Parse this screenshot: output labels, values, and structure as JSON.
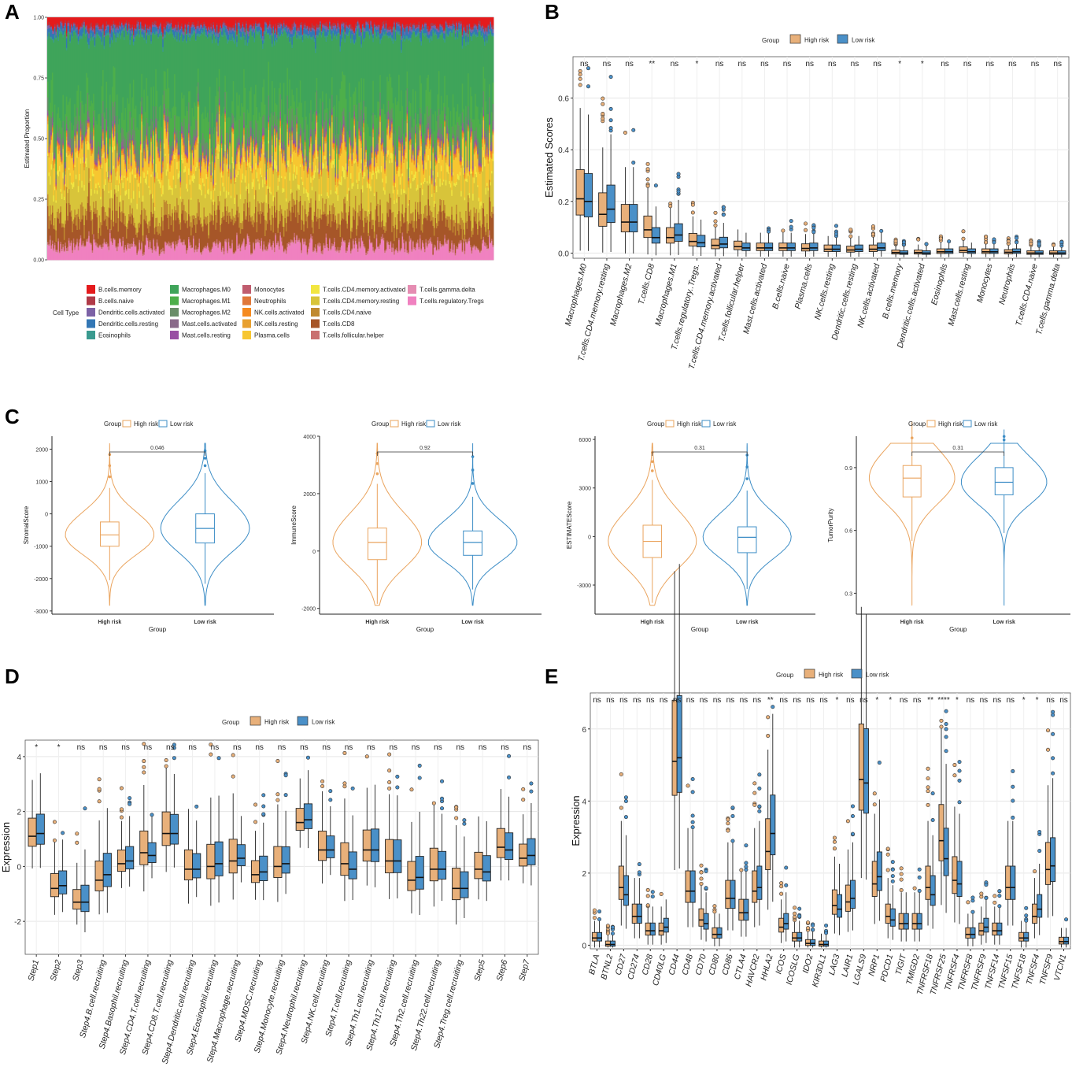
{
  "colors": {
    "high_risk": "#E8B07A",
    "low_risk": "#4A90C8",
    "high_line": "#EAA45E",
    "low_line": "#3C8DC6"
  },
  "panels": {
    "a": "A",
    "b": "B",
    "c": "C",
    "d": "D",
    "e": "E"
  },
  "chart_data": [
    {
      "id": "A",
      "type": "bar",
      "subtype": "stacked-proportion",
      "ylabel": "Estimated Proportion",
      "yticks": [
        "0.00",
        "0.25",
        "0.50",
        "0.75",
        "1.00"
      ],
      "legend_title": "Cell Type",
      "legend": [
        {
          "name": "B.cells.memory",
          "color": "#E41A1C"
        },
        {
          "name": "B.cells.naive",
          "color": "#B03A48"
        },
        {
          "name": "Dendritic.cells.activated",
          "color": "#7C62A6"
        },
        {
          "name": "Dendritic.cells.resting",
          "color": "#3377B5"
        },
        {
          "name": "Eosinophils",
          "color": "#3A9A8F"
        },
        {
          "name": "Macrophages.M0",
          "color": "#3FA45A"
        },
        {
          "name": "Macrophages.M1",
          "color": "#4DAF4A"
        },
        {
          "name": "Macrophages.M2",
          "color": "#6A8E69"
        },
        {
          "name": "Mast.cells.activated",
          "color": "#8A6A8A"
        },
        {
          "name": "Mast.cells.resting",
          "color": "#984EA3"
        },
        {
          "name": "Monocytes",
          "color": "#C05C6E"
        },
        {
          "name": "Neutrophils",
          "color": "#E0783A"
        },
        {
          "name": "NK.cells.activated",
          "color": "#F58A1F"
        },
        {
          "name": "NK.cells.resting",
          "color": "#E8A030"
        },
        {
          "name": "Plasma.cells",
          "color": "#F7C630"
        },
        {
          "name": "T.cells.CD4.memory.activated",
          "color": "#F2E640"
        },
        {
          "name": "T.cells.CD4.memory.resting",
          "color": "#D8C43A"
        },
        {
          "name": "T.cells.CD4.naive",
          "color": "#C08A30"
        },
        {
          "name": "T.cells.CD8",
          "color": "#A65628"
        },
        {
          "name": "T.cells.follicular.helper",
          "color": "#C97070"
        },
        {
          "name": "T.cells.gamma.delta",
          "color": "#E58CB2"
        },
        {
          "name": "T.cells.regulatory.Tregs",
          "color": "#F081C0"
        }
      ]
    },
    {
      "id": "B",
      "type": "box",
      "legend_title": "Group",
      "legend": [
        "High risk",
        "Low risk"
      ],
      "ylabel": "Estimated Scores",
      "yticks": [
        "0.0",
        "0.2",
        "0.4",
        "0.6"
      ],
      "ylim": [
        -0.02,
        0.76
      ],
      "categories": [
        "Macrophages.M0",
        "T.cells.CD4.memory.resting",
        "Macrophages.M2",
        "T.cells.CD8",
        "Macrophages.M1",
        "T.cells.regulatory..Tregs.",
        "T.cells.CD4.memory.activated",
        "T.cells.follicular.helper",
        "Mast.cells.activated",
        "B.cells.naive",
        "Plasma.cells",
        "NK.cells.resting",
        "Dendritic.cells.resting",
        "NK.cells.activated",
        "B.cells.memory",
        "Dendritic.cells.activated",
        "Eosinophils",
        "Mast.cells.resting",
        "Monocytes",
        "Neutrophils",
        "T.cells.CD4.naive",
        "T.cells.gamma.delta"
      ],
      "significance": [
        "ns",
        "ns",
        "ns",
        "**",
        "ns",
        "*",
        "ns",
        "ns",
        "ns",
        "ns",
        "ns",
        "ns",
        "ns",
        "ns",
        "*",
        "*",
        "ns",
        "ns",
        "ns",
        "ns",
        "ns",
        "ns"
      ],
      "high_median": [
        0.21,
        0.15,
        0.12,
        0.09,
        0.06,
        0.045,
        0.03,
        0.025,
        0.02,
        0.02,
        0.018,
        0.015,
        0.012,
        0.015,
        0.002,
        0.002,
        0.005,
        0.01,
        0.005,
        0.003,
        0.0,
        0.0
      ],
      "low_median": [
        0.2,
        0.17,
        0.12,
        0.06,
        0.07,
        0.04,
        0.035,
        0.02,
        0.02,
        0.02,
        0.02,
        0.015,
        0.015,
        0.02,
        0.0,
        0.0,
        0.005,
        0.005,
        0.005,
        0.005,
        0.0,
        0.0
      ]
    },
    {
      "id": "C1",
      "type": "violin",
      "legend_title": "Group",
      "legend": [
        "High risk",
        "Low risk"
      ],
      "ylabel": "StromalScore",
      "xlabel": "Group",
      "categories": [
        "High risk",
        "Low risk"
      ],
      "yticks": [
        "-3000",
        "-2000",
        "-1000",
        "0",
        "1000",
        "2000"
      ],
      "ylim": [
        -3100,
        2400
      ],
      "medians": [
        -650,
        -450
      ],
      "quartiles": [
        [
          -1000,
          -250
        ],
        [
          -900,
          0
        ]
      ],
      "p_value": "0.046"
    },
    {
      "id": "C2",
      "type": "violin",
      "legend_title": "Group",
      "legend": [
        "High risk",
        "Low risk"
      ],
      "ylabel": "ImmuneScore",
      "xlabel": "Group",
      "categories": [
        "High risk",
        "Low risk"
      ],
      "yticks": [
        "-2000",
        "0",
        "2000",
        "4000"
      ],
      "ylim": [
        -2200,
        4000
      ],
      "medians": [
        300,
        300
      ],
      "quartiles": [
        [
          -300,
          800
        ],
        [
          -150,
          700
        ]
      ],
      "p_value": "0.92"
    },
    {
      "id": "C3",
      "type": "violin",
      "legend_title": "Group",
      "legend": [
        "High risk",
        "Low risk"
      ],
      "ylabel": "ESTIMATEScore",
      "xlabel": "Group",
      "categories": [
        "High risk",
        "Low risk"
      ],
      "yticks": [
        "-3000",
        "0",
        "3000",
        "6000"
      ],
      "ylim": [
        -4800,
        6200
      ],
      "medians": [
        -300,
        -50
      ],
      "quartiles": [
        [
          -1300,
          700
        ],
        [
          -1000,
          600
        ]
      ],
      "p_value": "0.31"
    },
    {
      "id": "C4",
      "type": "violin",
      "legend_title": "Group",
      "legend": [
        "High risk",
        "Low risk"
      ],
      "ylabel": "TumorPurity",
      "xlabel": "Group",
      "categories": [
        "High risk",
        "Low risk"
      ],
      "yticks": [
        "0.3",
        "0.6",
        "0.9"
      ],
      "ylim": [
        0.2,
        1.05
      ],
      "medians": [
        0.85,
        0.83
      ],
      "quartiles": [
        [
          0.76,
          0.91
        ],
        [
          0.77,
          0.9
        ]
      ],
      "p_value": "0.31"
    },
    {
      "id": "D",
      "type": "box",
      "legend_title": "Group",
      "legend": [
        "High risk",
        "Low risk"
      ],
      "ylabel": "Expression",
      "yticks": [
        "-2",
        "0",
        "2",
        "4"
      ],
      "ylim": [
        -3.2,
        4.6
      ],
      "categories": [
        "Step1",
        "Step2",
        "Step3",
        "Step4.B.cell.recruiting",
        "Step4.Basophil.recruiting",
        "Step4.CD4.T.cell.recruiting",
        "Step4.CD8.T.cell.recruiting",
        "Step4.Dendritic.cell.recruiting",
        "Step4.Eosinophil.recruiting",
        "Step4.Macrophage.recruiting",
        "Step4.MDSC.recruiting",
        "Step4.Monocyte.recruiting",
        "Step4.Neutrophil.recruiting",
        "Step4.NK.cell.recruiting",
        "Step4.T.cell.recruiting",
        "Step4.Th1.cell.recruiting",
        "Step4.Th17.cell.recruiting",
        "Step4.Th2.cell.recruiting",
        "Step4.Th22.cell.recruiting",
        "Step4.Treg.cell.recruiting",
        "Step5",
        "Step6",
        "Step7"
      ],
      "significance": [
        "*",
        "*",
        "ns",
        "ns",
        "ns",
        "ns",
        "ns",
        "ns",
        "ns",
        "ns",
        "ns",
        "ns",
        "ns",
        "ns",
        "ns",
        "ns",
        "ns",
        "ns",
        "ns",
        "ns",
        "ns",
        "ns",
        "ns"
      ],
      "high_median": [
        1.1,
        -0.8,
        -1.3,
        -0.5,
        0.1,
        0.5,
        1.2,
        -0.1,
        0.0,
        0.2,
        -0.3,
        0.0,
        1.6,
        0.6,
        0.1,
        0.6,
        0.2,
        -0.5,
        -0.1,
        -0.8,
        -0.1,
        0.7,
        0.3
      ],
      "low_median": [
        1.2,
        -0.7,
        -1.3,
        -0.3,
        0.2,
        0.4,
        1.2,
        -0.1,
        0.1,
        0.3,
        -0.2,
        0.1,
        1.7,
        0.6,
        -0.1,
        0.6,
        0.2,
        -0.4,
        -0.1,
        -0.8,
        -0.2,
        0.6,
        0.4
      ]
    },
    {
      "id": "E",
      "type": "box",
      "legend_title": "Group",
      "legend": [
        "High risk",
        "Low risk"
      ],
      "ylabel": "Expression",
      "yticks": [
        "0",
        "2",
        "4",
        "6"
      ],
      "ylim": [
        -0.1,
        7.0
      ],
      "categories": [
        "BTLA",
        "BTNL2",
        "CD27",
        "CD274",
        "CD28",
        "CD40LG",
        "CD44",
        "CD48",
        "CD70",
        "CD80",
        "CD86",
        "CTLA4",
        "HAVCR2",
        "HHLA2",
        "ICOS",
        "ICOSLG",
        "IDO2",
        "KIR3DL1",
        "LAG3",
        "LAIR1",
        "LGALS9",
        "NRP1",
        "PDCD1",
        "TIGIT",
        "TMIGD2",
        "TNFRSF18",
        "TNFRSF25",
        "TNFRSF4",
        "TNFRSF8",
        "TNFRSF9",
        "TNFSF14",
        "TNFSF15",
        "TNFSF18",
        "TNFSF4",
        "TNFSF9",
        "VTCN1"
      ],
      "significance": [
        "ns",
        "ns",
        "ns",
        "ns",
        "ns",
        "ns",
        "ns",
        "ns",
        "ns",
        "ns",
        "ns",
        "ns",
        "ns",
        "**",
        "ns",
        "ns",
        "ns",
        "ns",
        "*",
        "ns",
        "ns",
        "*",
        "*",
        "ns",
        "ns",
        "**",
        "****",
        "*",
        "ns",
        "ns",
        "ns",
        "ns",
        "*",
        "*",
        "ns",
        "ns"
      ],
      "high_median": [
        0.2,
        0.02,
        1.6,
        0.8,
        0.4,
        0.4,
        5.1,
        1.5,
        0.7,
        0.3,
        1.3,
        0.9,
        1.5,
        2.6,
        0.5,
        0.2,
        0.05,
        0.02,
        1.1,
        1.2,
        4.6,
        1.7,
        0.8,
        0.6,
        0.6,
        1.6,
        2.9,
        1.8,
        0.3,
        0.4,
        0.4,
        1.6,
        0.2,
        0.8,
        2.1,
        0.1
      ],
      "low_median": [
        0.2,
        0.02,
        1.4,
        0.8,
        0.4,
        0.5,
        5.2,
        1.5,
        0.6,
        0.3,
        1.3,
        0.9,
        1.6,
        3.1,
        0.6,
        0.2,
        0.05,
        0.02,
        1.0,
        1.3,
        4.5,
        1.9,
        0.7,
        0.6,
        0.6,
        1.4,
        2.4,
        1.7,
        0.3,
        0.5,
        0.4,
        1.6,
        0.2,
        1.0,
        2.2,
        0.1
      ]
    }
  ]
}
